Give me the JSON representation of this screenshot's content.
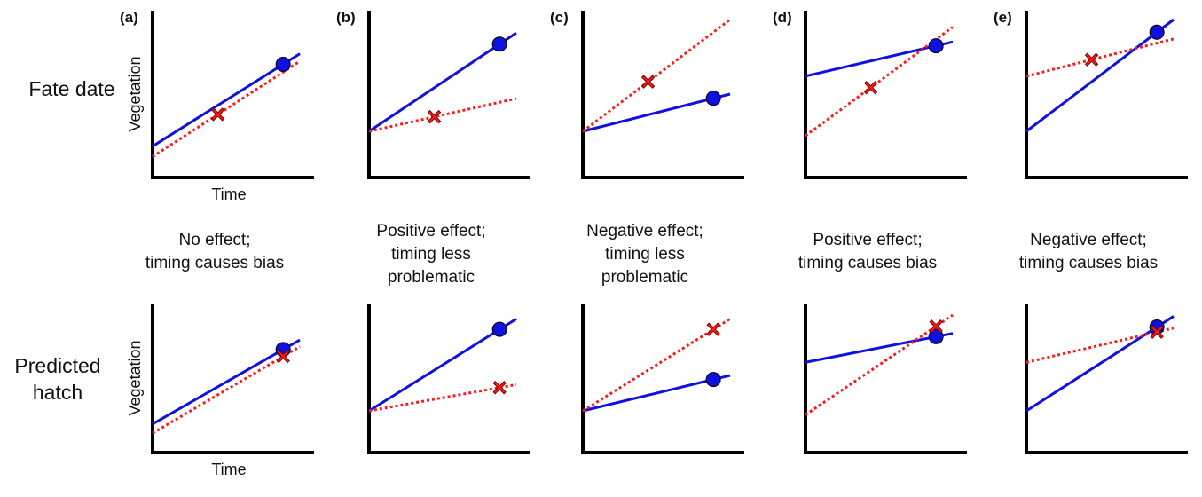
{
  "row_labels": {
    "top": "Fate date",
    "bottom_line1": "Predicted",
    "bottom_line2": "hatch"
  },
  "axis_labels": {
    "y": "Vegetation",
    "x": "Time"
  },
  "panels": [
    {
      "letter": "(a)",
      "caption": [
        "No effect;",
        "timing causes bias"
      ],
      "top": {
        "blue": [
          0.0,
          0.62
        ],
        "red": [
          0.0,
          0.64
        ],
        "circle": 0.92,
        "cross": 0.46
      },
      "bottom": {
        "blue": [
          0.0,
          0.64
        ],
        "red": [
          0.0,
          0.66
        ],
        "circle": 0.92,
        "cross": 0.92
      }
    },
    {
      "letter": "(b)",
      "caption": [
        "Positive effect;",
        "timing less",
        "problematic"
      ],
      "top": {
        "blue": [
          0.0,
          0.66
        ],
        "red": [
          0.0,
          0.22
        ],
        "circle": 0.92,
        "cross": 0.46
      },
      "bottom": {
        "blue": [
          0.0,
          0.7
        ],
        "red": [
          0.0,
          0.2
        ],
        "circle": 0.92,
        "cross": 0.92
      }
    },
    {
      "letter": "(c)",
      "caption": [
        "Negative effect;",
        "timing less",
        "problematic"
      ],
      "top": {
        "blue": [
          0.0,
          0.25
        ],
        "red": [
          0.0,
          0.75
        ],
        "circle": 0.92,
        "cross": 0.46
      },
      "bottom": {
        "blue": [
          0.0,
          0.27
        ],
        "red": [
          0.0,
          0.7
        ],
        "circle": 0.92,
        "cross": 0.92
      }
    },
    {
      "letter": "(d)",
      "caption": [
        "Positive effect;",
        "timing causes bias"
      ],
      "top": {
        "blue": [
          0.0,
          0.23
        ],
        "red": [
          0.0,
          0.73
        ],
        "circle": 0.92,
        "cross": 0.46
      },
      "bottom": {
        "blue": [
          0.0,
          0.22
        ],
        "red": [
          0.0,
          0.76
        ],
        "circle": 0.92,
        "cross": 0.92
      }
    },
    {
      "letter": "(e)",
      "caption": [
        "Negative effect;",
        "timing causes bias"
      ],
      "top": {
        "blue": [
          0.0,
          0.75
        ],
        "red": [
          0.0,
          0.25
        ],
        "circle": 0.92,
        "cross": 0.46
      },
      "bottom": {
        "blue": [
          0.0,
          0.72
        ],
        "red": [
          0.0,
          0.26
        ],
        "circle": 0.92,
        "cross": 0.92
      }
    }
  ],
  "colors": {
    "blue": "#1010e0",
    "red": "#ff1a1a",
    "axis": "#000000"
  }
}
